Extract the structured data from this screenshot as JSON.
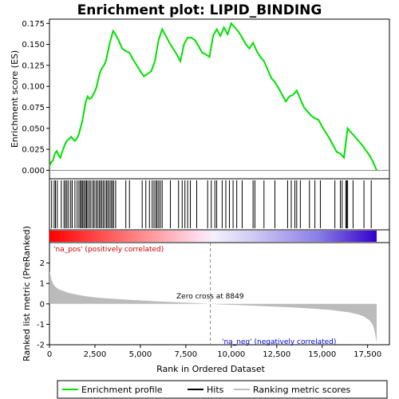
{
  "title": "Enrichment plot: LIPID_BINDING",
  "top_panel": {
    "ylabel": "Enrichment score (ES)"
  },
  "bottom_panel": {
    "ylabel": "Ranked list metric (PreRanked)",
    "xlabel": "Rank in Ordered Dataset"
  },
  "annotations": {
    "pos_label": "'na_pos' (positively correlated)",
    "neg_label": "'na_neg' (negatively correlated)",
    "zero_cross": "Zero cross at 8849"
  },
  "legend": {
    "enrichment_profile": "Enrichment profile",
    "hits": "Hits",
    "ranking_metric": "Ranking metric scores"
  },
  "colors": {
    "profile": "#00e000",
    "hits": "#000000",
    "metric": "#bbbbbb",
    "pos_end": "#ff0000",
    "neg_end": "#3300cc",
    "pos_text": "#cc0000",
    "neg_text": "#0000cc"
  },
  "chart_data": [
    {
      "type": "line",
      "name": "enrichment-profile",
      "xlim": [
        0,
        18700
      ],
      "ylim": [
        -0.01,
        0.18
      ],
      "yticks": [
        0.0,
        0.025,
        0.05,
        0.075,
        0.1,
        0.125,
        0.15,
        0.175
      ],
      "ytick_labels": [
        "0.000",
        "0.025",
        "0.050",
        "0.075",
        "0.100",
        "0.125",
        "0.150",
        "0.175"
      ],
      "x": [
        0,
        100,
        200,
        300,
        400,
        500,
        600,
        700,
        800,
        900,
        1000,
        1100,
        1200,
        1300,
        1400,
        1500,
        1600,
        1700,
        1800,
        1900,
        2000,
        2100,
        2200,
        2300,
        2400,
        2500,
        2600,
        2700,
        2800,
        2900,
        3000,
        3100,
        3200,
        3300,
        3400,
        3500,
        3600,
        3800,
        4000,
        4200,
        4400,
        4600,
        4800,
        5000,
        5200,
        5400,
        5600,
        5800,
        6000,
        6200,
        6400,
        6600,
        6800,
        7000,
        7200,
        7400,
        7600,
        7800,
        8000,
        8200,
        8400,
        8600,
        8800,
        9000,
        9200,
        9400,
        9600,
        9800,
        10000,
        10200,
        10400,
        10600,
        10800,
        11000,
        11200,
        11400,
        11600,
        11800,
        12000,
        12200,
        12400,
        12600,
        12800,
        13000,
        13200,
        13400,
        13600,
        13800,
        14000,
        14200,
        14400,
        14600,
        14800,
        15000,
        15200,
        15400,
        15600,
        15800,
        16000,
        16200,
        16400,
        16600,
        16800,
        17000,
        17200,
        17400,
        17600,
        17800,
        18000
      ],
      "y": [
        0.005,
        0.01,
        0.012,
        0.02,
        0.023,
        0.018,
        0.015,
        0.022,
        0.028,
        0.033,
        0.036,
        0.038,
        0.04,
        0.037,
        0.035,
        0.038,
        0.042,
        0.05,
        0.058,
        0.07,
        0.082,
        0.088,
        0.085,
        0.086,
        0.09,
        0.094,
        0.1,
        0.11,
        0.118,
        0.122,
        0.125,
        0.13,
        0.14,
        0.15,
        0.158,
        0.166,
        0.163,
        0.155,
        0.145,
        0.142,
        0.14,
        0.132,
        0.125,
        0.118,
        0.112,
        0.115,
        0.118,
        0.13,
        0.155,
        0.168,
        0.16,
        0.152,
        0.145,
        0.138,
        0.13,
        0.15,
        0.158,
        0.158,
        0.155,
        0.148,
        0.14,
        0.138,
        0.135,
        0.16,
        0.168,
        0.16,
        0.17,
        0.162,
        0.175,
        0.17,
        0.165,
        0.158,
        0.15,
        0.145,
        0.152,
        0.142,
        0.135,
        0.13,
        0.12,
        0.11,
        0.105,
        0.098,
        0.09,
        0.082,
        0.088,
        0.09,
        0.095,
        0.085,
        0.075,
        0.07,
        0.065,
        0.062,
        0.06,
        0.052,
        0.045,
        0.038,
        0.03,
        0.022,
        0.02,
        0.015,
        0.05,
        0.045,
        0.04,
        0.035,
        0.03,
        0.024,
        0.018,
        0.01,
        0.0
      ]
    },
    {
      "type": "bar",
      "name": "hits",
      "x": [
        120,
        260,
        330,
        430,
        650,
        800,
        880,
        960,
        1050,
        1170,
        1250,
        1400,
        1520,
        1620,
        1700,
        1760,
        1830,
        1900,
        1980,
        2040,
        2110,
        2200,
        2280,
        2390,
        2460,
        2560,
        2640,
        2730,
        2800,
        2880,
        2960,
        3050,
        3140,
        3210,
        3290,
        3380,
        3450,
        3530,
        3640,
        4200,
        4400,
        5100,
        5300,
        5500,
        5650,
        5750,
        5850,
        5920,
        6010,
        6100,
        6200,
        6650,
        7100,
        7300,
        7450,
        7600,
        7750,
        8100,
        8700,
        8900,
        9100,
        9200,
        9500,
        9700,
        9900,
        10100,
        10300,
        10600,
        11200,
        11300,
        11800,
        12400,
        13100,
        13300,
        13500,
        13600,
        13800,
        14300,
        14600,
        14900,
        15700,
        16000,
        16100,
        16300,
        16350,
        16400,
        16700,
        17300,
        17700
      ]
    },
    {
      "type": "area",
      "name": "ranking-metric",
      "xlim": [
        0,
        18700
      ],
      "ylim": [
        -2,
        3
      ],
      "yticks": [
        -2,
        -1,
        0,
        1,
        2
      ],
      "ytick_labels": [
        "-2",
        "-1",
        "0",
        "1",
        "2"
      ],
      "xticks": [
        0,
        2500,
        5000,
        7500,
        10000,
        12500,
        15000,
        17500
      ],
      "xtick_labels": [
        "0",
        "2,500",
        "5,000",
        "7,500",
        "10,000",
        "12,500",
        "15,000",
        "17,500"
      ],
      "zero_cross": 8849,
      "x": [
        0,
        50,
        100,
        200,
        300,
        500,
        800,
        1000,
        1500,
        2000,
        2500,
        3000,
        4000,
        5000,
        6000,
        7000,
        8000,
        8849,
        9500,
        10500,
        11500,
        12500,
        13500,
        14500,
        15500,
        16000,
        16500,
        17000,
        17300,
        17600,
        17800,
        17900,
        18000
      ],
      "y": [
        1.6,
        1.45,
        1.2,
        1.0,
        0.85,
        0.72,
        0.62,
        0.55,
        0.45,
        0.38,
        0.32,
        0.28,
        0.22,
        0.17,
        0.12,
        0.08,
        0.04,
        0.0,
        -0.03,
        -0.06,
        -0.1,
        -0.14,
        -0.18,
        -0.23,
        -0.3,
        -0.36,
        -0.42,
        -0.52,
        -0.62,
        -0.8,
        -1.05,
        -1.4,
        -1.9
      ]
    }
  ]
}
